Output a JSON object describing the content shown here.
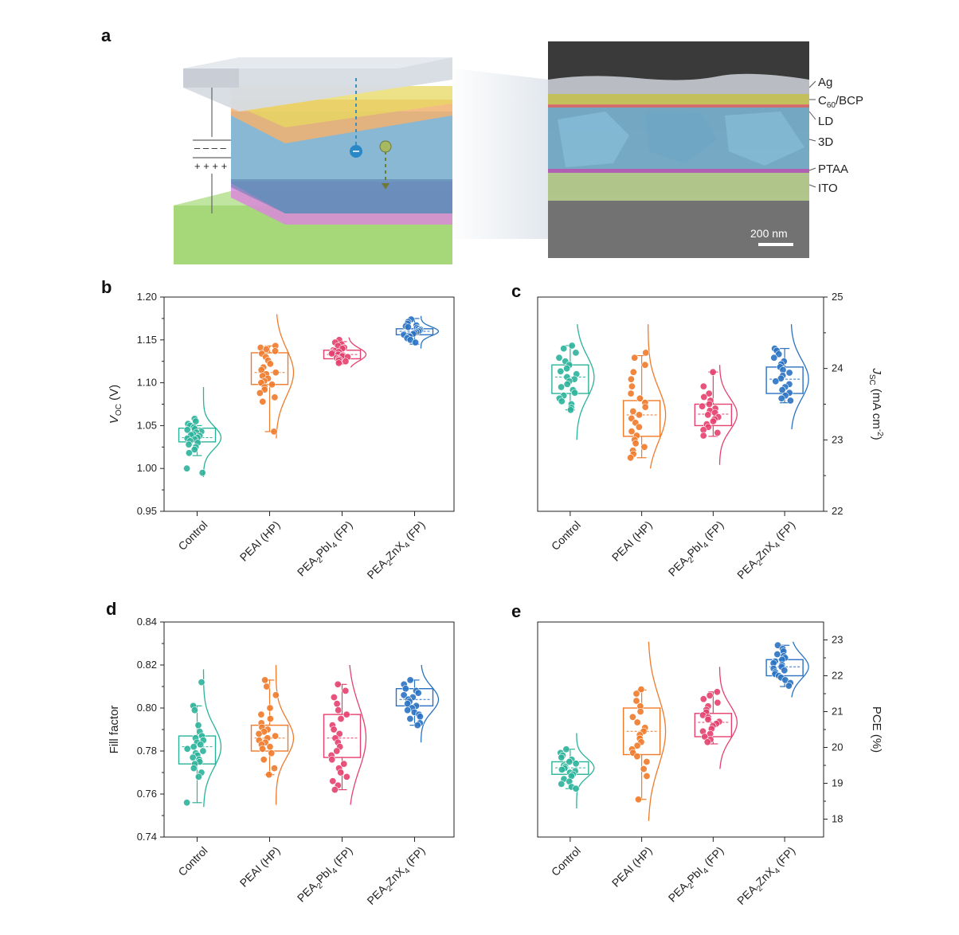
{
  "figure": {
    "panel_a": {
      "letter": "a",
      "layers": [
        {
          "name": "Ag",
          "color": "#c9cdd6"
        },
        {
          "name": "C60/BCP",
          "color": "#e8e060"
        },
        {
          "name": "LD",
          "color": "#e07070"
        },
        {
          "name": "3D",
          "color": "#6aa6c8"
        },
        {
          "name": "PTAA",
          "color": "#c060c0"
        },
        {
          "name": "ITO",
          "color": "#a6d87a"
        }
      ],
      "sem_label": {
        "c60_main": "C",
        "c60_sub": "60",
        "c60_rest": "/BCP"
      },
      "scale_bar": "200 nm",
      "capacitor_symbols": {
        "negative": "– – – –",
        "positive": "+ + + +"
      }
    },
    "colors": {
      "control": "#2bb39a",
      "peai": "#f07a2a",
      "pea2pbi4": "#e6406e",
      "pea2znx4": "#2a72c2"
    }
  },
  "chart_data": [
    {
      "panel": "b",
      "type": "box-scatter",
      "ylabel_main": "V",
      "ylabel_sub": "OC",
      "ylabel_rest": " (V)",
      "ylim": [
        0.95,
        1.2
      ],
      "yticks": [
        "0.95",
        "1.00",
        "1.05",
        "1.10",
        "1.15",
        "1.20"
      ],
      "axis_side": "left",
      "categories": [
        {
          "main": "Control",
          "sub": "",
          "mid": "",
          "sub2": "",
          "tail": ""
        },
        {
          "main": "PEAI (HP)",
          "sub": "",
          "mid": "",
          "sub2": "",
          "tail": ""
        },
        {
          "main": "PEA",
          "sub": "2",
          "mid": "PbI",
          "sub2": "4",
          "tail": " (FP)"
        },
        {
          "main": "PEA",
          "sub": "2",
          "mid": "ZnX",
          "sub2": "4",
          "tail": " (FP)"
        }
      ],
      "series": [
        {
          "box": [
            1.031,
            1.047
          ],
          "mean": 1.036,
          "whisker": [
            1.015,
            1.05
          ],
          "range": [
            0.99,
            1.095
          ],
          "points": [
            1.058,
            1.055,
            1.052,
            1.05,
            1.048,
            1.046,
            1.045,
            1.043,
            1.042,
            1.04,
            1.039,
            1.038,
            1.036,
            1.035,
            1.034,
            1.032,
            1.03,
            1.028,
            1.025,
            1.022,
            1.018,
            1.0,
            0.995
          ]
        },
        {
          "box": [
            1.098,
            1.135
          ],
          "mean": 1.112,
          "whisker": [
            1.043,
            1.143
          ],
          "range": [
            1.035,
            1.18
          ],
          "points": [
            1.143,
            1.141,
            1.139,
            1.137,
            1.134,
            1.13,
            1.126,
            1.122,
            1.118,
            1.115,
            1.112,
            1.11,
            1.108,
            1.105,
            1.102,
            1.1,
            1.098,
            1.095,
            1.092,
            1.088,
            1.083,
            1.078,
            1.043
          ]
        },
        {
          "box": [
            1.128,
            1.138
          ],
          "mean": 1.133,
          "whisker": [
            1.122,
            1.148
          ],
          "range": [
            1.118,
            1.153
          ],
          "points": [
            1.15,
            1.147,
            1.145,
            1.143,
            1.141,
            1.14,
            1.138,
            1.137,
            1.136,
            1.135,
            1.134,
            1.133,
            1.132,
            1.131,
            1.13,
            1.129,
            1.128,
            1.127,
            1.126,
            1.125,
            1.123
          ]
        },
        {
          "box": [
            1.156,
            1.163
          ],
          "mean": 1.16,
          "whisker": [
            1.145,
            1.175
          ],
          "range": [
            1.14,
            1.178
          ],
          "points": [
            1.174,
            1.171,
            1.169,
            1.167,
            1.166,
            1.165,
            1.164,
            1.163,
            1.162,
            1.161,
            1.16,
            1.159,
            1.158,
            1.157,
            1.156,
            1.155,
            1.154,
            1.152,
            1.15,
            1.147
          ]
        }
      ]
    },
    {
      "panel": "c",
      "type": "box-scatter",
      "ylabel_main": "J",
      "ylabel_sub": "SC",
      "ylabel_rest": " (mA cm",
      "ylabel_sup": "-2",
      "ylabel_tail": ")",
      "ylim": [
        22,
        25
      ],
      "yticks": [
        "22",
        "23",
        "24",
        "25"
      ],
      "axis_side": "right",
      "categories": [
        {
          "main": "Control",
          "sub": "",
          "mid": "",
          "sub2": "",
          "tail": ""
        },
        {
          "main": "PEAI (HP)",
          "sub": "",
          "mid": "",
          "sub2": "",
          "tail": ""
        },
        {
          "main": "PEA",
          "sub": "2",
          "mid": "PbI",
          "sub2": "4",
          "tail": " (FP)"
        },
        {
          "main": "PEA",
          "sub": "2",
          "mid": "ZnX",
          "sub2": "4",
          "tail": " (FP)"
        }
      ],
      "series": [
        {
          "box": [
            23.65,
            24.05
          ],
          "mean": 23.88,
          "whisker": [
            23.42,
            24.32
          ],
          "range": [
            23.0,
            24.62
          ],
          "points": [
            24.32,
            24.28,
            24.22,
            24.15,
            24.1,
            24.05,
            24.0,
            23.96,
            23.92,
            23.88,
            23.85,
            23.82,
            23.78,
            23.74,
            23.7,
            23.66,
            23.62,
            23.58,
            23.54,
            23.5,
            23.45,
            23.42
          ]
        },
        {
          "box": [
            23.05,
            23.55
          ],
          "mean": 23.35,
          "whisker": [
            22.75,
            24.18
          ],
          "range": [
            22.6,
            24.62
          ],
          "points": [
            24.22,
            24.15,
            24.05,
            23.95,
            23.85,
            23.75,
            23.65,
            23.58,
            23.52,
            23.46,
            23.4,
            23.35,
            23.3,
            23.24,
            23.18,
            23.12,
            23.06,
            23.0,
            22.95,
            22.9,
            22.85,
            22.8,
            22.75
          ]
        },
        {
          "box": [
            23.2,
            23.5
          ],
          "mean": 23.36,
          "whisker": [
            23.05,
            23.95
          ],
          "range": [
            22.65,
            24.05
          ],
          "points": [
            23.95,
            23.75,
            23.65,
            23.6,
            23.55,
            23.5,
            23.47,
            23.44,
            23.41,
            23.38,
            23.35,
            23.32,
            23.29,
            23.26,
            23.22,
            23.18,
            23.14,
            23.1,
            23.06
          ]
        },
        {
          "box": [
            23.65,
            24.02
          ],
          "mean": 23.85,
          "whisker": [
            23.52,
            24.28
          ],
          "range": [
            23.15,
            24.62
          ],
          "points": [
            24.28,
            24.25,
            24.2,
            24.15,
            24.1,
            24.06,
            24.02,
            23.98,
            23.94,
            23.9,
            23.86,
            23.82,
            23.78,
            23.74,
            23.7,
            23.66,
            23.62,
            23.58,
            23.55
          ]
        }
      ]
    },
    {
      "panel": "d",
      "type": "box-scatter",
      "ylabel_main": "Fill factor",
      "ylabel_sub": "",
      "ylabel_rest": "",
      "ylim": [
        0.74,
        0.84
      ],
      "yticks": [
        "0.74",
        "0.76",
        "0.78",
        "0.80",
        "0.82",
        "0.84"
      ],
      "axis_side": "left",
      "categories": [
        {
          "main": "Control",
          "sub": "",
          "mid": "",
          "sub2": "",
          "tail": ""
        },
        {
          "main": "PEAI (HP)",
          "sub": "",
          "mid": "",
          "sub2": "",
          "tail": ""
        },
        {
          "main": "PEA",
          "sub": "2",
          "mid": "PbI",
          "sub2": "4",
          "tail": " (FP)"
        },
        {
          "main": "PEA",
          "sub": "2",
          "mid": "ZnX",
          "sub2": "4",
          "tail": " (FP)"
        }
      ],
      "series": [
        {
          "box": [
            0.774,
            0.787
          ],
          "mean": 0.782,
          "whisker": [
            0.756,
            0.801
          ],
          "range": [
            0.754,
            0.818
          ],
          "points": [
            0.812,
            0.801,
            0.799,
            0.792,
            0.789,
            0.787,
            0.786,
            0.785,
            0.784,
            0.783,
            0.782,
            0.781,
            0.78,
            0.779,
            0.778,
            0.777,
            0.776,
            0.775,
            0.774,
            0.772,
            0.77,
            0.768,
            0.756
          ]
        },
        {
          "box": [
            0.78,
            0.792
          ],
          "mean": 0.786,
          "whisker": [
            0.769,
            0.813
          ],
          "range": [
            0.755,
            0.82
          ],
          "points": [
            0.813,
            0.81,
            0.806,
            0.8,
            0.797,
            0.795,
            0.793,
            0.791,
            0.79,
            0.789,
            0.788,
            0.787,
            0.786,
            0.785,
            0.784,
            0.783,
            0.782,
            0.781,
            0.779,
            0.776,
            0.772,
            0.769
          ]
        },
        {
          "box": [
            0.777,
            0.797
          ],
          "mean": 0.786,
          "whisker": [
            0.762,
            0.811
          ],
          "range": [
            0.755,
            0.82
          ],
          "points": [
            0.811,
            0.808,
            0.805,
            0.802,
            0.799,
            0.797,
            0.795,
            0.792,
            0.79,
            0.788,
            0.786,
            0.784,
            0.782,
            0.78,
            0.778,
            0.776,
            0.774,
            0.772,
            0.77,
            0.768,
            0.766,
            0.764,
            0.762
          ]
        },
        {
          "box": [
            0.801,
            0.809
          ],
          "mean": 0.804,
          "whisker": [
            0.792,
            0.813
          ],
          "range": [
            0.784,
            0.82
          ],
          "points": [
            0.813,
            0.811,
            0.809,
            0.808,
            0.807,
            0.806,
            0.805,
            0.804,
            0.803,
            0.802,
            0.801,
            0.8,
            0.799,
            0.798,
            0.797,
            0.796,
            0.795,
            0.793,
            0.792
          ]
        }
      ]
    },
    {
      "panel": "e",
      "type": "box-scatter",
      "ylabel_main": "PCE (%)",
      "ylabel_sub": "",
      "ylabel_rest": "",
      "ylim": [
        17.5,
        23.5
      ],
      "yticks": [
        "18",
        "19",
        "20",
        "21",
        "22",
        "23"
      ],
      "ytick_values": [
        18,
        19,
        20,
        21,
        22,
        23
      ],
      "axis_side": "right",
      "categories": [
        {
          "main": "Control",
          "sub": "",
          "mid": "",
          "sub2": "",
          "tail": ""
        },
        {
          "main": "PEAI (HP)",
          "sub": "",
          "mid": "",
          "sub2": "",
          "tail": ""
        },
        {
          "main": "PEA",
          "sub": "2",
          "mid": "PbI",
          "sub2": "4",
          "tail": " (FP)"
        },
        {
          "main": "PEA",
          "sub": "2",
          "mid": "ZnX",
          "sub2": "4",
          "tail": " (FP)"
        }
      ],
      "series": [
        {
          "box": [
            19.25,
            19.6
          ],
          "mean": 19.43,
          "whisker": [
            18.85,
            19.95
          ],
          "range": [
            18.3,
            20.4
          ],
          "points": [
            19.95,
            19.85,
            19.78,
            19.72,
            19.66,
            19.6,
            19.55,
            19.5,
            19.46,
            19.42,
            19.38,
            19.34,
            19.3,
            19.25,
            19.2,
            19.12,
            19.05,
            18.98,
            18.9,
            18.85
          ]
        },
        {
          "box": [
            19.8,
            21.1
          ],
          "mean": 20.45,
          "whisker": [
            18.55,
            21.6
          ],
          "range": [
            17.95,
            22.95
          ],
          "points": [
            21.62,
            21.5,
            21.3,
            21.15,
            21.0,
            20.85,
            20.7,
            20.55,
            20.45,
            20.35,
            20.25,
            20.15,
            20.05,
            19.95,
            19.85,
            19.75,
            19.6,
            19.4,
            19.2,
            18.55
          ]
        },
        {
          "box": [
            20.3,
            20.95
          ],
          "mean": 20.7,
          "whisker": [
            20.1,
            21.55
          ],
          "range": [
            19.4,
            22.25
          ],
          "points": [
            21.55,
            21.45,
            21.35,
            21.25,
            21.15,
            21.05,
            20.98,
            20.9,
            20.84,
            20.78,
            20.72,
            20.66,
            20.6,
            20.52,
            20.45,
            20.38,
            20.3,
            20.22,
            20.15
          ]
        },
        {
          "box": [
            22.0,
            22.45
          ],
          "mean": 22.25,
          "whisker": [
            21.7,
            22.85
          ],
          "range": [
            21.4,
            22.95
          ],
          "points": [
            22.85,
            22.75,
            22.68,
            22.6,
            22.55,
            22.5,
            22.45,
            22.4,
            22.35,
            22.3,
            22.25,
            22.2,
            22.15,
            22.1,
            22.05,
            22.0,
            21.95,
            21.88,
            21.8,
            21.72
          ]
        }
      ]
    }
  ]
}
